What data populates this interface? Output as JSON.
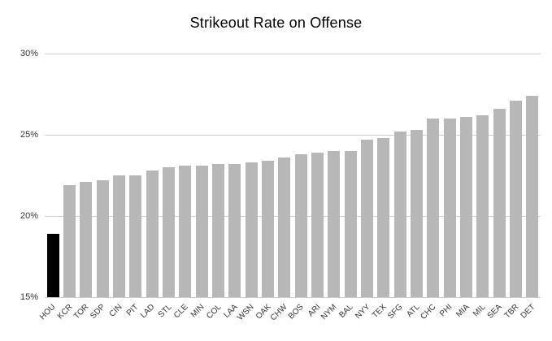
{
  "title": "Strikeout Rate on Offense",
  "chart_data": {
    "type": "bar",
    "title": "Strikeout Rate on Offense",
    "xlabel": "",
    "ylabel": "",
    "categories": [
      "HOU",
      "KCR",
      "TOR",
      "SDP",
      "CIN",
      "PIT",
      "LAD",
      "STL",
      "CLE",
      "MIN",
      "COL",
      "LAA",
      "WSN",
      "OAK",
      "CHW",
      "BOS",
      "ARI",
      "NYM",
      "BAL",
      "NYY",
      "TEX",
      "SFG",
      "ATL",
      "CHC",
      "PHI",
      "MIA",
      "MIL",
      "SEA",
      "TBR",
      "DET"
    ],
    "values": [
      18.9,
      21.9,
      22.1,
      22.2,
      22.5,
      22.5,
      22.8,
      23.0,
      23.1,
      23.1,
      23.2,
      23.2,
      23.3,
      23.4,
      23.6,
      23.8,
      23.9,
      24.0,
      24.0,
      24.7,
      24.8,
      25.2,
      25.3,
      26.0,
      26.0,
      26.1,
      26.2,
      26.6,
      27.1,
      27.4
    ],
    "ylim": [
      15,
      30
    ],
    "yticks": [
      15,
      20,
      25,
      30
    ],
    "ytick_labels": [
      "15%",
      "20%",
      "25%",
      "30%"
    ],
    "grid": true,
    "legend": "none",
    "highlight_category": "HOU",
    "bar_color": "#b7b7b7",
    "highlight_color": "#000000",
    "gridline_color": "#cccccc",
    "axis_label_color": "#333333",
    "title_color": "#000000"
  }
}
